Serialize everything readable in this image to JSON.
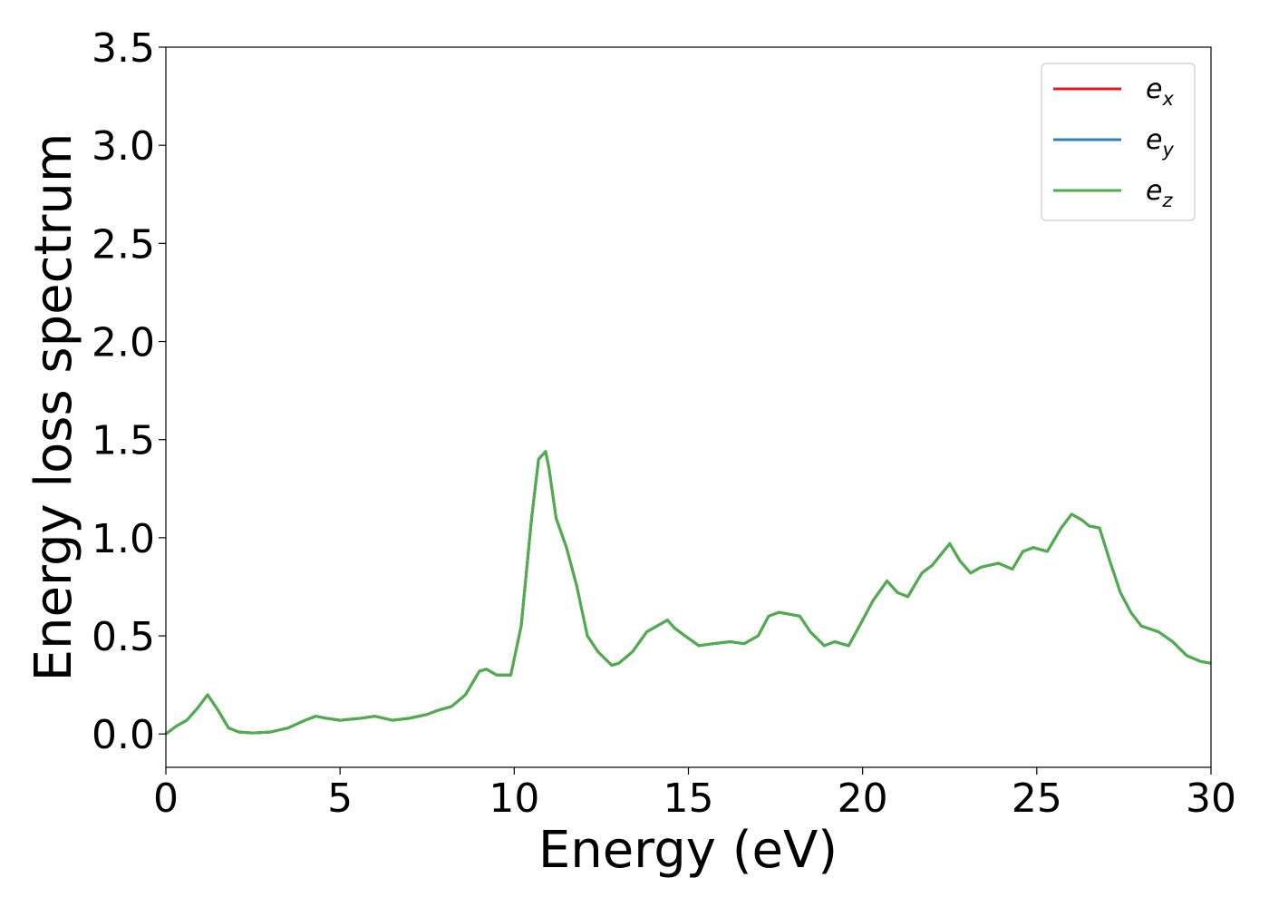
{
  "chart_data": {
    "type": "line",
    "xlabel": "Energy (eV)",
    "ylabel": "Energy loss spectrum",
    "xlim": [
      0,
      30
    ],
    "ylim": [
      -0.17,
      3.5
    ],
    "xticks": [
      0,
      5,
      10,
      15,
      20,
      25,
      30
    ],
    "yticks": [
      0.0,
      0.5,
      1.0,
      1.5,
      2.0,
      2.5,
      3.0,
      3.5
    ],
    "xtick_labels": [
      "0",
      "5",
      "10",
      "15",
      "20",
      "25",
      "30"
    ],
    "ytick_labels": [
      "0.0",
      "0.5",
      "1.0",
      "1.5",
      "2.0",
      "2.5",
      "3.0",
      "3.5"
    ],
    "grid": false,
    "legend_position": "top-right",
    "x": [
      0,
      0.3,
      0.6,
      0.9,
      1.2,
      1.5,
      1.8,
      2.1,
      2.5,
      3.0,
      3.5,
      4.0,
      4.3,
      4.6,
      5.0,
      5.3,
      5.6,
      6.0,
      6.5,
      7.0,
      7.5,
      7.8,
      8.2,
      8.6,
      9.0,
      9.2,
      9.5,
      9.9,
      10.2,
      10.5,
      10.7,
      10.9,
      11.0,
      11.2,
      11.5,
      11.8,
      12.1,
      12.4,
      12.8,
      13.0,
      13.4,
      13.8,
      14.1,
      14.4,
      14.6,
      14.9,
      15.3,
      15.7,
      16.2,
      16.6,
      17.0,
      17.3,
      17.6,
      17.9,
      18.2,
      18.5,
      18.9,
      19.2,
      19.6,
      20.0,
      20.3,
      20.7,
      21.0,
      21.3,
      21.7,
      22.0,
      22.5,
      22.8,
      23.1,
      23.4,
      23.9,
      24.3,
      24.6,
      24.9,
      25.3,
      25.7,
      26.0,
      26.3,
      26.5,
      26.8,
      27.1,
      27.4,
      27.7,
      28.0,
      28.5,
      28.9,
      29.3,
      29.7,
      30.0
    ],
    "series": [
      {
        "name": "e_x",
        "color": "#e41a1c",
        "values": [
          0.0,
          0.04,
          0.07,
          0.13,
          0.2,
          0.12,
          0.03,
          0.01,
          0.005,
          0.01,
          0.03,
          0.07,
          0.09,
          0.08,
          0.07,
          0.075,
          0.08,
          0.09,
          0.07,
          0.08,
          0.1,
          0.12,
          0.14,
          0.2,
          0.32,
          0.33,
          0.3,
          0.3,
          0.55,
          1.1,
          1.4,
          1.44,
          1.35,
          1.1,
          0.95,
          0.75,
          0.5,
          0.42,
          0.35,
          0.36,
          0.42,
          0.52,
          0.55,
          0.58,
          0.54,
          0.5,
          0.45,
          0.46,
          0.47,
          0.46,
          0.5,
          0.6,
          0.62,
          0.61,
          0.6,
          0.52,
          0.45,
          0.47,
          0.45,
          0.58,
          0.68,
          0.78,
          0.72,
          0.7,
          0.82,
          0.86,
          0.97,
          0.88,
          0.82,
          0.85,
          0.87,
          0.84,
          0.93,
          0.95,
          0.93,
          1.05,
          1.12,
          1.09,
          1.06,
          1.05,
          0.88,
          0.72,
          0.62,
          0.55,
          0.52,
          0.47,
          0.4,
          0.37,
          0.36
        ]
      },
      {
        "name": "e_y",
        "color": "#377eb8",
        "values": [
          0.0,
          0.04,
          0.07,
          0.13,
          0.2,
          0.12,
          0.03,
          0.01,
          0.005,
          0.01,
          0.03,
          0.07,
          0.09,
          0.08,
          0.07,
          0.075,
          0.08,
          0.09,
          0.07,
          0.08,
          0.1,
          0.12,
          0.14,
          0.2,
          0.32,
          0.33,
          0.3,
          0.3,
          0.55,
          1.1,
          1.4,
          1.44,
          1.35,
          1.1,
          0.95,
          0.75,
          0.5,
          0.42,
          0.35,
          0.36,
          0.42,
          0.52,
          0.55,
          0.58,
          0.54,
          0.5,
          0.45,
          0.46,
          0.47,
          0.46,
          0.5,
          0.6,
          0.62,
          0.61,
          0.6,
          0.52,
          0.45,
          0.47,
          0.45,
          0.58,
          0.68,
          0.78,
          0.72,
          0.7,
          0.82,
          0.86,
          0.97,
          0.88,
          0.82,
          0.85,
          0.87,
          0.84,
          0.93,
          0.95,
          0.93,
          1.05,
          1.12,
          1.09,
          1.06,
          1.05,
          0.88,
          0.72,
          0.62,
          0.55,
          0.52,
          0.47,
          0.4,
          0.37,
          0.36
        ]
      },
      {
        "name": "e_z",
        "color": "#4daf4a",
        "values": [
          0.0,
          0.04,
          0.07,
          0.13,
          0.2,
          0.12,
          0.03,
          0.01,
          0.005,
          0.01,
          0.03,
          0.07,
          0.09,
          0.08,
          0.07,
          0.075,
          0.08,
          0.09,
          0.07,
          0.08,
          0.1,
          0.12,
          0.14,
          0.2,
          0.32,
          0.33,
          0.3,
          0.3,
          0.55,
          1.1,
          1.4,
          1.44,
          1.35,
          1.1,
          0.95,
          0.75,
          0.5,
          0.42,
          0.35,
          0.36,
          0.42,
          0.52,
          0.55,
          0.58,
          0.54,
          0.5,
          0.45,
          0.46,
          0.47,
          0.46,
          0.5,
          0.6,
          0.62,
          0.61,
          0.6,
          0.52,
          0.45,
          0.47,
          0.45,
          0.58,
          0.68,
          0.78,
          0.72,
          0.7,
          0.82,
          0.86,
          0.97,
          0.88,
          0.82,
          0.85,
          0.87,
          0.84,
          0.93,
          0.95,
          0.93,
          1.05,
          1.12,
          1.09,
          1.06,
          1.05,
          0.88,
          0.72,
          0.62,
          0.55,
          0.52,
          0.47,
          0.4,
          0.37,
          0.36
        ]
      }
    ]
  },
  "legend": [
    {
      "base": "e",
      "sub": "x",
      "color": "#e41a1c"
    },
    {
      "base": "e",
      "sub": "y",
      "color": "#377eb8"
    },
    {
      "base": "e",
      "sub": "z",
      "color": "#4daf4a"
    }
  ]
}
